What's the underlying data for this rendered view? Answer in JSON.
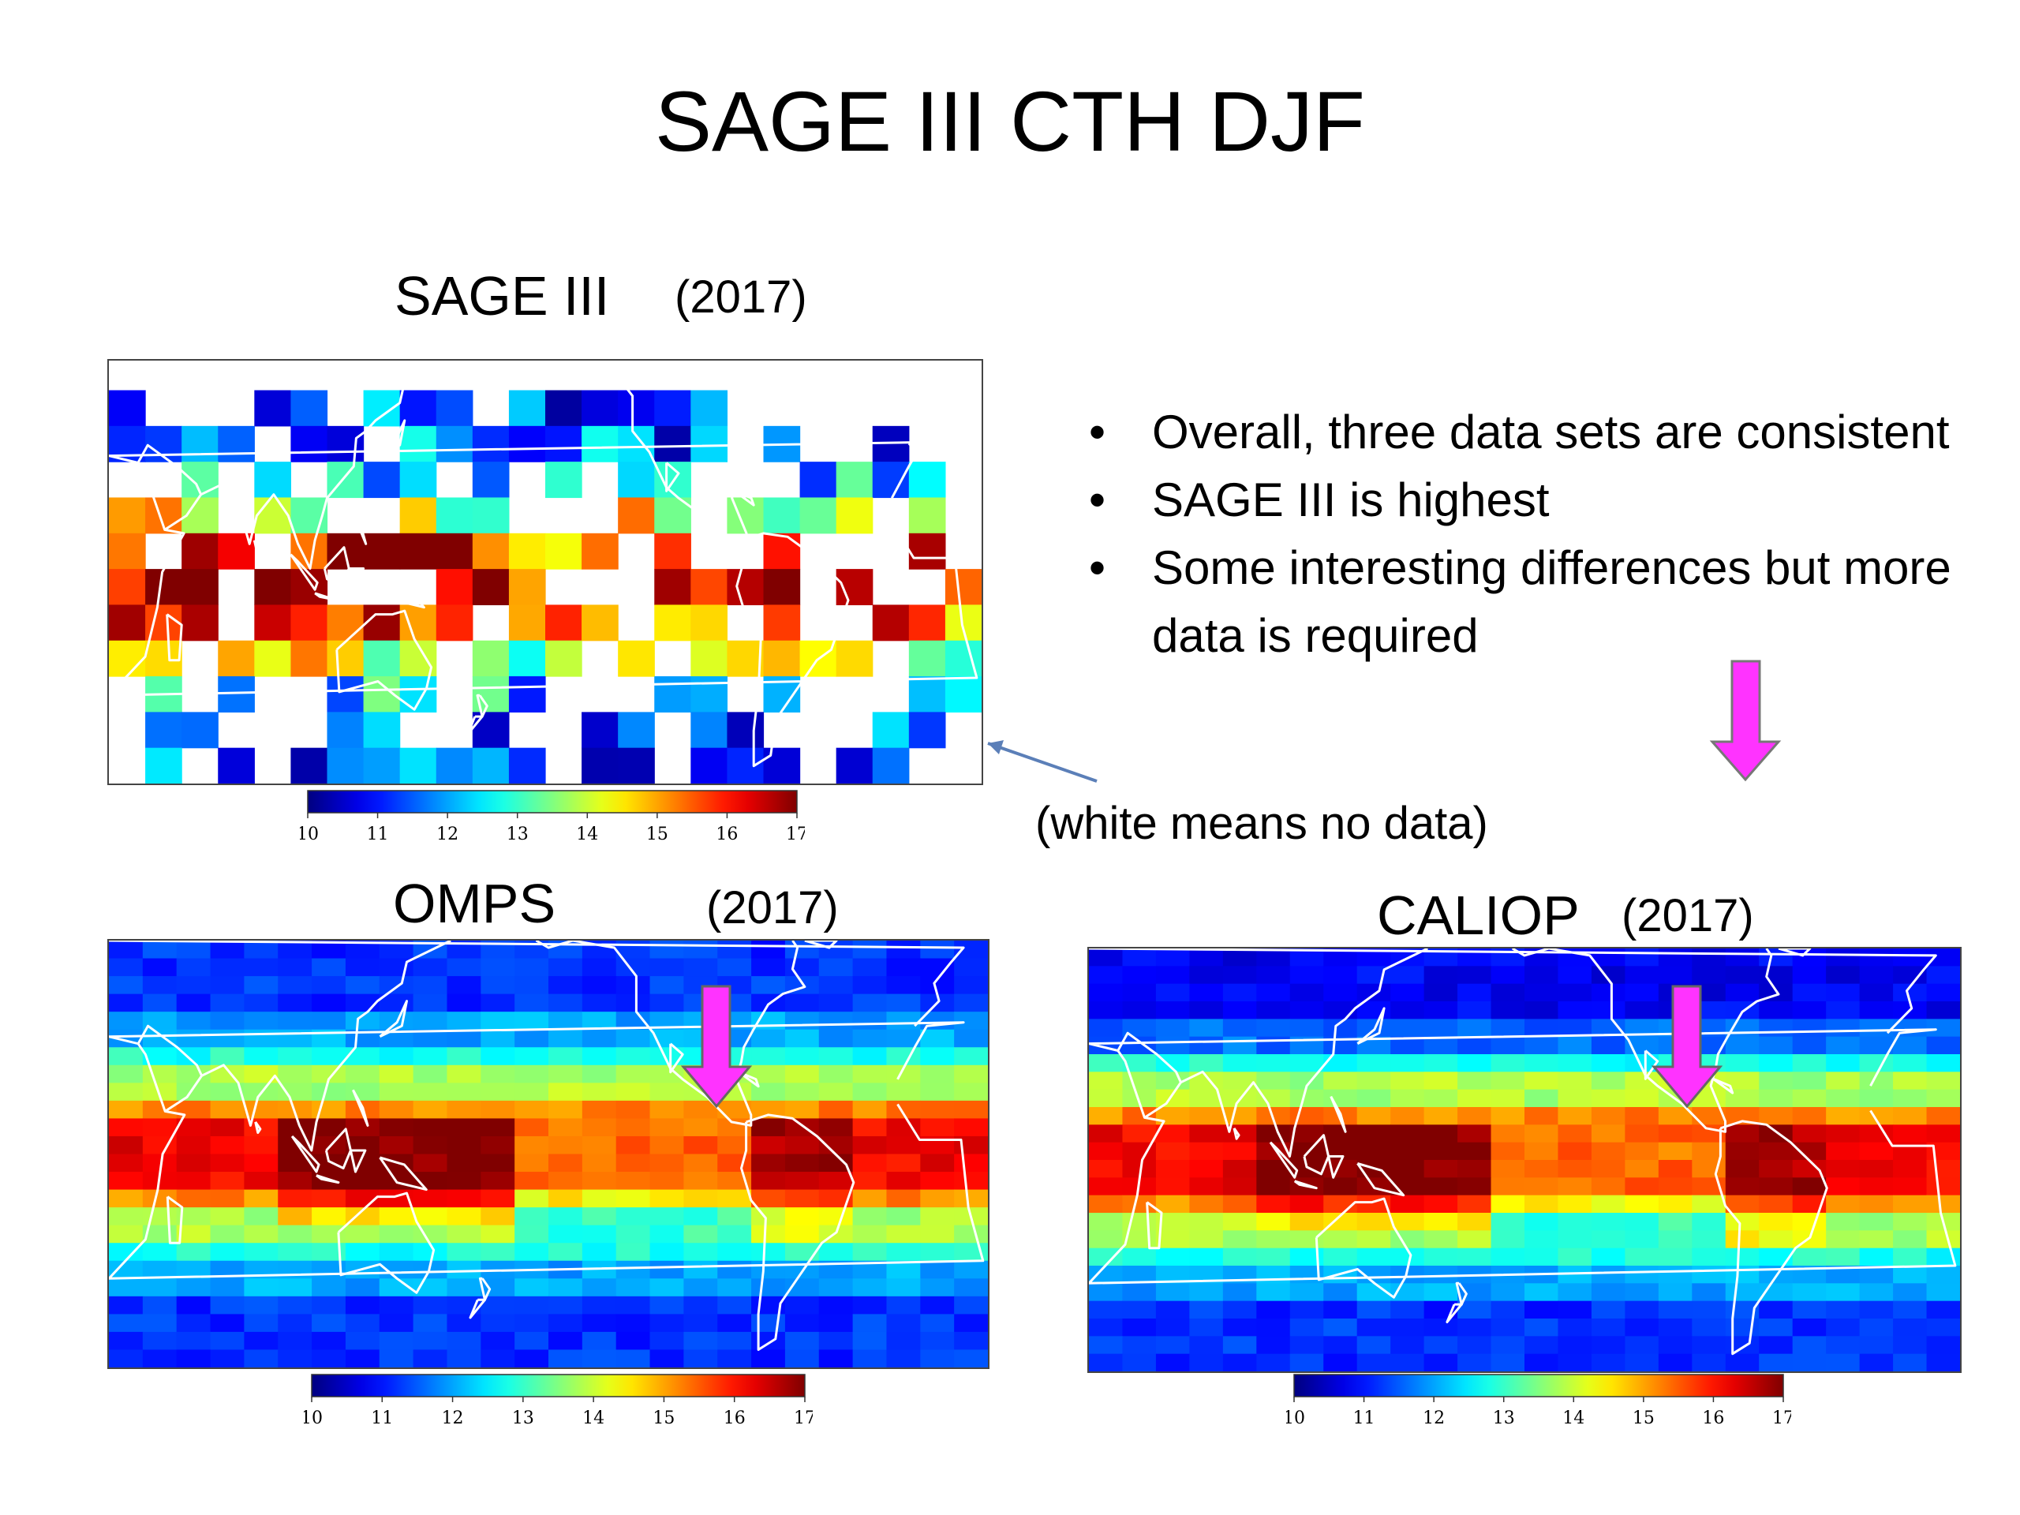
{
  "slide": {
    "title": "SAGE III CTH DJF",
    "bullets": [
      "Overall, three data sets are consistent",
      "SAGE III is highest",
      "Some interesting differences but more data is required"
    ],
    "note": "(white means no data)"
  },
  "panels": {
    "sage": {
      "label": "SAGE III",
      "year": "(2017)"
    },
    "omps": {
      "label": "OMPS",
      "year": "(2017)"
    },
    "caliop": {
      "label": "CALIOP",
      "year": "(2017)"
    }
  },
  "colorbar": {
    "ticks": [
      "10",
      "11",
      "12",
      "13",
      "14",
      "15",
      "16",
      "17"
    ],
    "min": 10,
    "max": 17,
    "colormap": "jet"
  },
  "colors": {
    "arrow_magenta": "#ff33ff",
    "annotation_line": "#5b7fb8",
    "coastline": "#ffffff",
    "no_data": "#ffffff"
  }
}
